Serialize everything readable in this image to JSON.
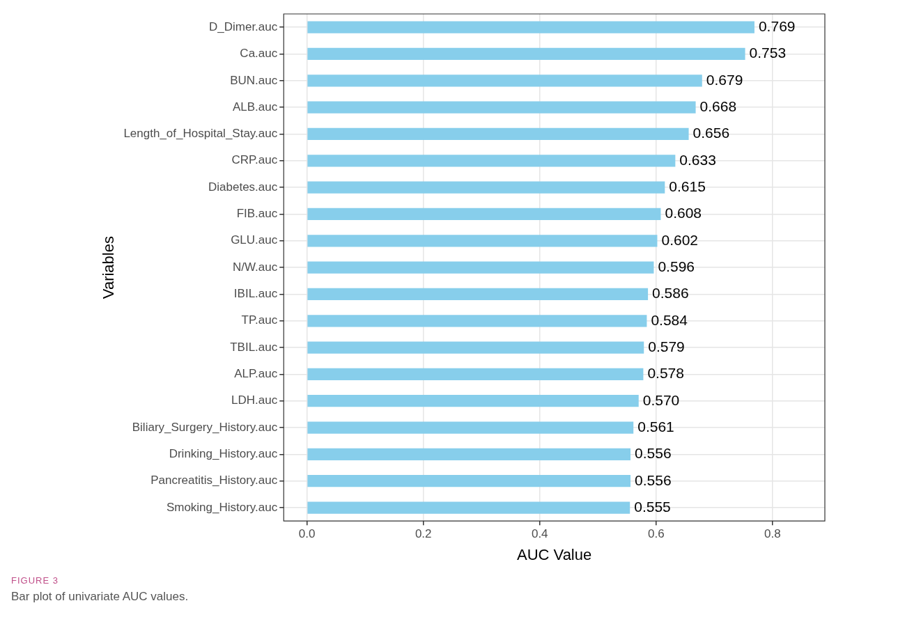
{
  "chart_data": {
    "type": "bar",
    "orientation": "horizontal",
    "xlabel": "AUC Value",
    "ylabel": "Variables",
    "categories": [
      "D_Dimer.auc",
      "Ca.auc",
      "BUN.auc",
      "ALB.auc",
      "Length_of_Hospital_Stay.auc",
      "CRP.auc",
      "Diabetes.auc",
      "FIB.auc",
      "GLU.auc",
      "N/W.auc",
      "IBIL.auc",
      "TP.auc",
      "TBIL.auc",
      "ALP.auc",
      "LDH.auc",
      "Biliary_Surgery_History.auc",
      "Drinking_History.auc",
      "Pancreatitis_History.auc",
      "Smoking_History.auc"
    ],
    "values": [
      0.769,
      0.753,
      0.679,
      0.668,
      0.656,
      0.633,
      0.615,
      0.608,
      0.602,
      0.596,
      0.586,
      0.584,
      0.579,
      0.578,
      0.57,
      0.561,
      0.556,
      0.556,
      0.555
    ],
    "value_labels": [
      "0.769",
      "0.753",
      "0.679",
      "0.668",
      "0.656",
      "0.633",
      "0.615",
      "0.608",
      "0.602",
      "0.596",
      "0.586",
      "0.584",
      "0.579",
      "0.578",
      "0.570",
      "0.561",
      "0.556",
      "0.556",
      "0.555"
    ],
    "color": "#87ceeb",
    "xlim": [
      -0.04,
      0.89
    ],
    "xticks": [
      {
        "value": 0,
        "label": "0.0"
      },
      {
        "value": 0.2,
        "label": "0.2"
      },
      {
        "value": 0.4,
        "label": "0.4"
      },
      {
        "value": 0.6,
        "label": "0.6"
      },
      {
        "value": 0.8,
        "label": "0.8"
      }
    ],
    "grid": true,
    "legend": false,
    "annotations": [
      "FIGURE 3",
      "Bar plot of univariate AUC values."
    ]
  }
}
